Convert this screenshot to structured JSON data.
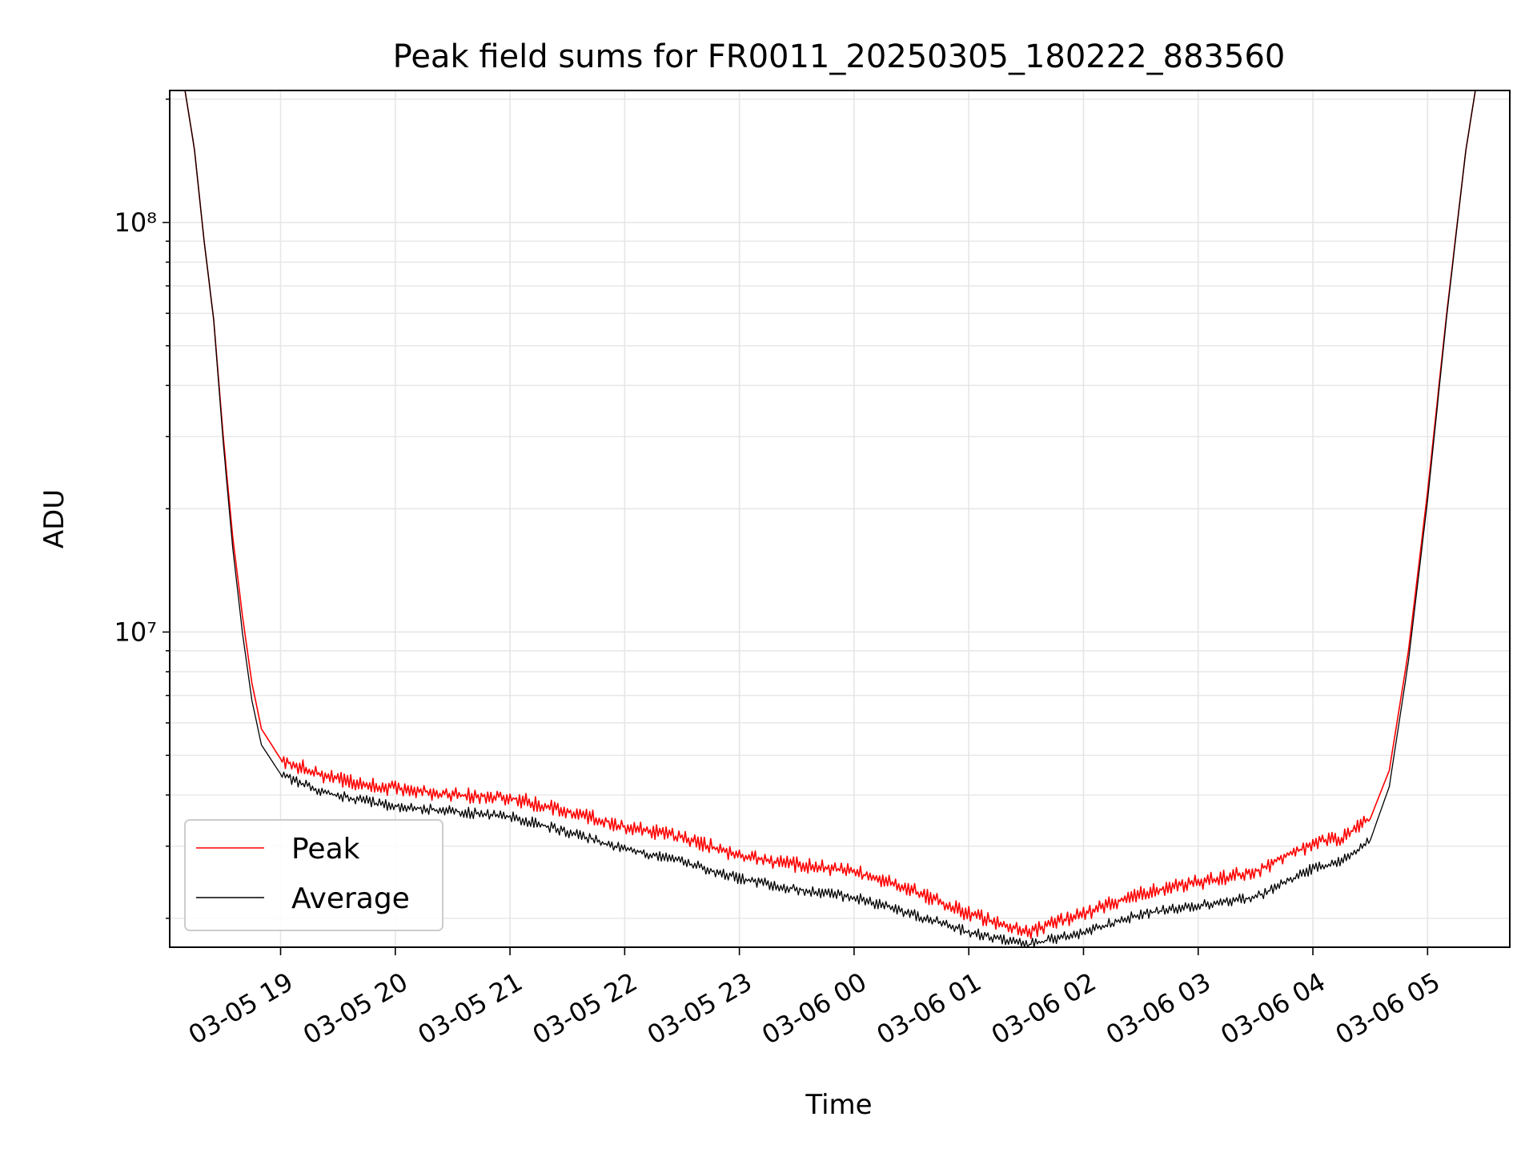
{
  "chart_data": {
    "type": "line",
    "title": "Peak field sums for FR0011_20250305_180222_883560",
    "xlabel": "Time",
    "ylabel": "ADU",
    "yscale": "log",
    "ylim": [
      1700000,
      210000000
    ],
    "xlim": [
      "2025-03-05 18:02",
      "2025-03-06 05:43"
    ],
    "grid": true,
    "legend_position": "lower-left",
    "x_ticks": [
      {
        "label": "03-05 19",
        "time": "2025-03-05 19:00"
      },
      {
        "label": "03-05 20",
        "time": "2025-03-05 20:00"
      },
      {
        "label": "03-05 21",
        "time": "2025-03-05 21:00"
      },
      {
        "label": "03-05 22",
        "time": "2025-03-05 22:00"
      },
      {
        "label": "03-05 23",
        "time": "2025-03-05 23:00"
      },
      {
        "label": "03-06 00",
        "time": "2025-03-06 00:00"
      },
      {
        "label": "03-06 01",
        "time": "2025-03-06 01:00"
      },
      {
        "label": "03-06 02",
        "time": "2025-03-06 02:00"
      },
      {
        "label": "03-06 03",
        "time": "2025-03-06 03:00"
      },
      {
        "label": "03-06 04",
        "time": "2025-03-06 04:00"
      },
      {
        "label": "03-06 05",
        "time": "2025-03-06 05:00"
      }
    ],
    "y_ticks": [
      {
        "label": "10⁷",
        "value": 10000000
      },
      {
        "label": "10⁸",
        "value": 100000000
      }
    ],
    "series": [
      {
        "name": "Peak",
        "color": "#ff0000",
        "points": [
          [
            "2025-03-05 18:10",
            210000000
          ],
          [
            "2025-03-05 18:15",
            150000000
          ],
          [
            "2025-03-05 18:20",
            90000000
          ],
          [
            "2025-03-05 18:25",
            58000000
          ],
          [
            "2025-03-05 18:30",
            30000000
          ],
          [
            "2025-03-05 18:35",
            17000000
          ],
          [
            "2025-03-05 18:40",
            11000000
          ],
          [
            "2025-03-05 18:45",
            7500000
          ],
          [
            "2025-03-05 18:50",
            5800000
          ],
          [
            "2025-03-05 19:00",
            4900000
          ],
          [
            "2025-03-05 19:20",
            4500000
          ],
          [
            "2025-03-05 19:40",
            4250000
          ],
          [
            "2025-03-05 20:00",
            4150000
          ],
          [
            "2025-03-05 20:30",
            4000000
          ],
          [
            "2025-03-05 21:00",
            3950000
          ],
          [
            "2025-03-05 21:30",
            3650000
          ],
          [
            "2025-03-05 22:00",
            3350000
          ],
          [
            "2025-03-05 22:30",
            3150000
          ],
          [
            "2025-03-05 23:00",
            2850000
          ],
          [
            "2025-03-05 23:30",
            2700000
          ],
          [
            "2025-03-06 00:00",
            2600000
          ],
          [
            "2025-03-06 00:30",
            2350000
          ],
          [
            "2025-03-06 01:00",
            2050000
          ],
          [
            "2025-03-06 01:30",
            1850000
          ],
          [
            "2025-03-06 02:00",
            2050000
          ],
          [
            "2025-03-06 02:30",
            2300000
          ],
          [
            "2025-03-06 03:00",
            2450000
          ],
          [
            "2025-03-06 03:30",
            2600000
          ],
          [
            "2025-03-06 04:00",
            3050000
          ],
          [
            "2025-03-06 04:15",
            3150000
          ],
          [
            "2025-03-06 04:30",
            3500000
          ],
          [
            "2025-03-06 04:40",
            4600000
          ],
          [
            "2025-03-06 04:50",
            9000000
          ],
          [
            "2025-03-06 05:00",
            22000000
          ],
          [
            "2025-03-06 05:10",
            60000000
          ],
          [
            "2025-03-06 05:20",
            150000000
          ],
          [
            "2025-03-06 05:25",
            210000000
          ]
        ]
      },
      {
        "name": "Average",
        "color": "#000000",
        "points": [
          [
            "2025-03-05 18:10",
            210000000
          ],
          [
            "2025-03-05 18:15",
            150000000
          ],
          [
            "2025-03-05 18:20",
            90000000
          ],
          [
            "2025-03-05 18:25",
            58000000
          ],
          [
            "2025-03-05 18:30",
            29000000
          ],
          [
            "2025-03-05 18:35",
            16000000
          ],
          [
            "2025-03-05 18:40",
            10000000
          ],
          [
            "2025-03-05 18:45",
            6800000
          ],
          [
            "2025-03-05 18:50",
            5300000
          ],
          [
            "2025-03-05 19:00",
            4500000
          ],
          [
            "2025-03-05 19:20",
            4100000
          ],
          [
            "2025-03-05 19:40",
            3900000
          ],
          [
            "2025-03-05 20:00",
            3750000
          ],
          [
            "2025-03-05 20:30",
            3650000
          ],
          [
            "2025-03-05 21:00",
            3550000
          ],
          [
            "2025-03-05 21:30",
            3250000
          ],
          [
            "2025-03-05 22:00",
            2950000
          ],
          [
            "2025-03-05 22:30",
            2750000
          ],
          [
            "2025-03-05 23:00",
            2500000
          ],
          [
            "2025-03-05 23:30",
            2350000
          ],
          [
            "2025-03-06 00:00",
            2250000
          ],
          [
            "2025-03-06 00:30",
            2050000
          ],
          [
            "2025-03-06 01:00",
            1850000
          ],
          [
            "2025-03-06 01:30",
            1720000
          ],
          [
            "2025-03-06 02:00",
            1850000
          ],
          [
            "2025-03-06 02:30",
            2050000
          ],
          [
            "2025-03-06 03:00",
            2150000
          ],
          [
            "2025-03-06 03:30",
            2250000
          ],
          [
            "2025-03-06 04:00",
            2650000
          ],
          [
            "2025-03-06 04:15",
            2750000
          ],
          [
            "2025-03-06 04:30",
            3100000
          ],
          [
            "2025-03-06 04:40",
            4200000
          ],
          [
            "2025-03-06 04:50",
            8500000
          ],
          [
            "2025-03-06 05:00",
            21000000
          ],
          [
            "2025-03-06 05:10",
            59000000
          ],
          [
            "2025-03-06 05:20",
            150000000
          ],
          [
            "2025-03-06 05:25",
            210000000
          ]
        ]
      }
    ]
  }
}
